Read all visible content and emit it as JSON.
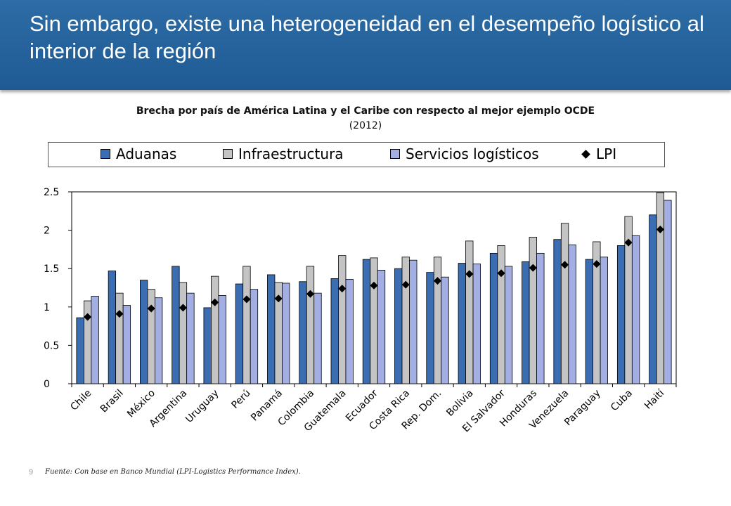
{
  "slide": {
    "title": "Sin embargo, existe una heterogeneidad en el desempeño logístico al interior de la región",
    "page_number": "9",
    "source": "Fuente: Con base en Banco Mundial (LPI-Logistics Performance Index)."
  },
  "colors": {
    "header": "#2563a0",
    "aduanas": "#3b6db3",
    "infraestructura": "#c4c4c4",
    "servicios": "#a3afe3",
    "lpi": "#000000",
    "plot_bg": "#ffffff"
  },
  "chart_data": {
    "type": "bar",
    "title": "Brecha por país de América Latina y el Caribe con respecto al mejor ejemplo OCDE",
    "subtitle": "(2012)",
    "categories": [
      "Chile",
      "Brasil",
      "México",
      "Argentina",
      "Uruguay",
      "Perú",
      "Panamá",
      "Colombia",
      "Guatemala",
      "Ecuador",
      "Costa Rica",
      "Rep. Dom.",
      "Bolivia",
      "El Salvador",
      "Honduras",
      "Venezuela",
      "Paraguay",
      "Cuba",
      "Haití"
    ],
    "series": [
      {
        "name": "Aduanas",
        "type": "bar",
        "values": [
          0.86,
          1.47,
          1.35,
          1.53,
          0.99,
          1.3,
          1.42,
          1.33,
          1.37,
          1.62,
          1.5,
          1.45,
          1.57,
          1.7,
          1.59,
          1.88,
          1.62,
          1.8,
          2.2
        ]
      },
      {
        "name": "Infraestructura",
        "type": "bar",
        "values": [
          1.08,
          1.18,
          1.23,
          1.32,
          1.4,
          1.53,
          1.32,
          1.53,
          1.67,
          1.64,
          1.65,
          1.65,
          1.86,
          1.8,
          1.91,
          2.09,
          1.85,
          2.18,
          2.49
        ]
      },
      {
        "name": "Servicios logísticos",
        "type": "bar",
        "values": [
          1.14,
          1.02,
          1.12,
          1.18,
          1.15,
          1.23,
          1.31,
          1.18,
          1.36,
          1.48,
          1.61,
          1.39,
          1.56,
          1.53,
          1.7,
          1.81,
          1.65,
          1.93,
          2.39
        ]
      },
      {
        "name": "LPI",
        "type": "marker",
        "values": [
          0.87,
          0.91,
          0.98,
          0.99,
          1.06,
          1.1,
          1.11,
          1.17,
          1.24,
          1.28,
          1.29,
          1.34,
          1.43,
          1.44,
          1.51,
          1.55,
          1.56,
          1.84,
          2.01
        ]
      }
    ],
    "ylim": [
      0,
      2.5
    ],
    "yticks": [
      "0",
      "0.5",
      "1",
      "1.5",
      "2",
      "2.5"
    ],
    "xlabel": "",
    "ylabel": "",
    "legend_position": "top"
  }
}
